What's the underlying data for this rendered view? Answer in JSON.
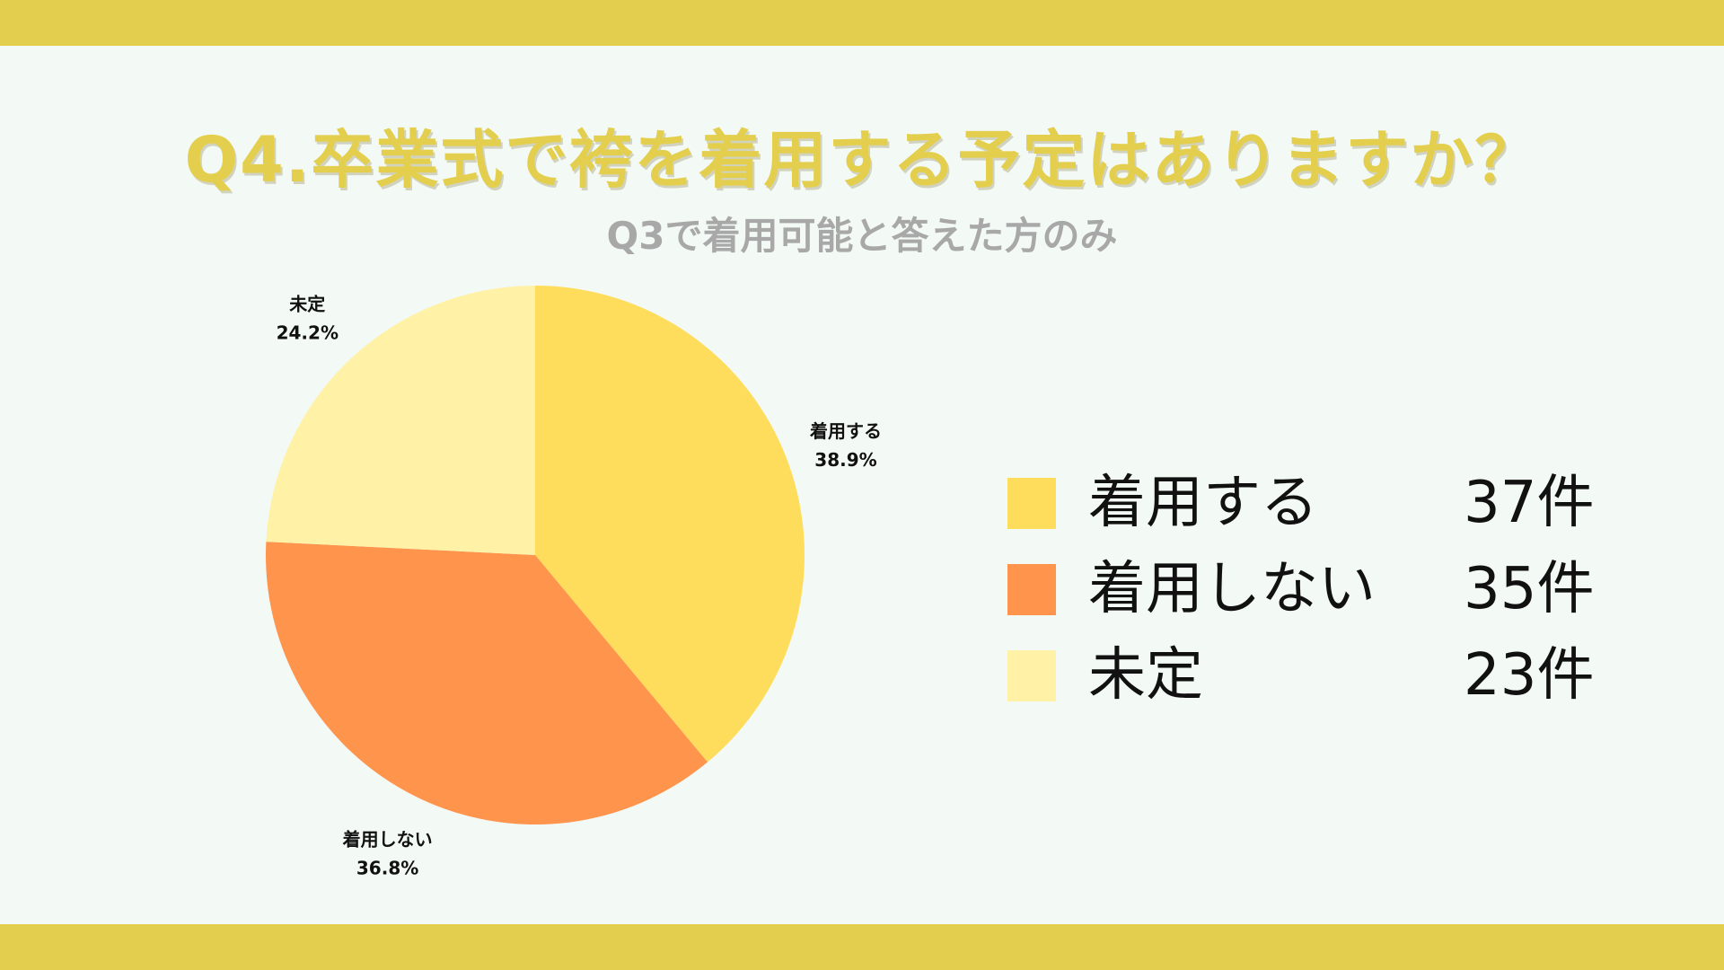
{
  "colors": {
    "band": "#e3cf4d",
    "background": "#f3f9f5",
    "title": "#e3cf4d",
    "subtitle": "#a8a8a8",
    "slice_1": "#ffdd5c",
    "slice_2": "#ff944d",
    "slice_3": "#fff2a6"
  },
  "header": {
    "title": "Q4.卒業式で袴を着用する予定はありますか？",
    "subtitle": "Q3で着用可能と答えた方のみ"
  },
  "chart_data": {
    "type": "pie",
    "title": "Q4.卒業式で袴を着用する予定はありますか？",
    "subtitle": "Q3で着用可能と答えた方のみ",
    "categories": [
      "着用する",
      "着用しない",
      "未定"
    ],
    "values": [
      37,
      35,
      23
    ],
    "percent_labels": [
      "38.9%",
      "36.8%",
      "24.2%"
    ],
    "colors": [
      "#ffdd5c",
      "#ff944d",
      "#fff2a6"
    ],
    "start_angle": "12 o'clock",
    "direction": "clockwise",
    "legend_position": "right"
  },
  "legend": {
    "items": [
      {
        "label": "着用する",
        "count": "37件"
      },
      {
        "label": "着用しない",
        "count": "35件"
      },
      {
        "label": "未定",
        "count": "23件"
      }
    ]
  }
}
